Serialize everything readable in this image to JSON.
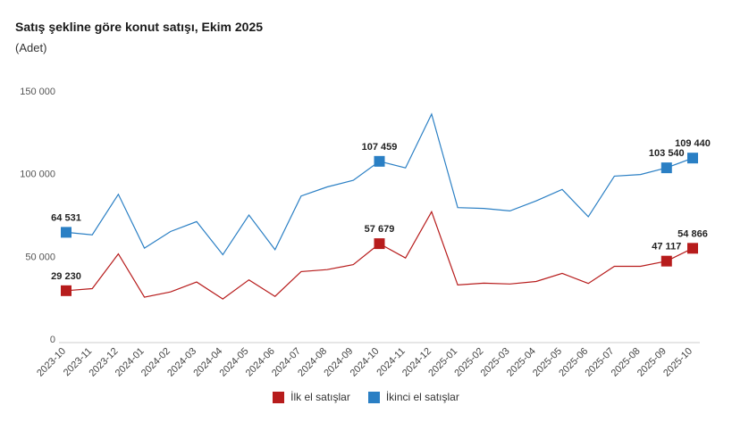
{
  "chart_data": {
    "type": "line",
    "title": "Satış şekline göre konut satışı, Ekim 2025",
    "subtitle": "(Adet)",
    "xlabel": "",
    "ylabel": "",
    "ylim": [
      0,
      150000
    ],
    "yticks": [
      0,
      50000,
      100000,
      150000
    ],
    "ytick_labels": [
      "0",
      "50 000",
      "100 000",
      "150 000"
    ],
    "categories": [
      "2023-10",
      "2023-11",
      "2023-12",
      "2024-01",
      "2024-02",
      "2024-03",
      "2024-04",
      "2024-05",
      "2024-06",
      "2024-07",
      "2024-08",
      "2024-09",
      "2024-10",
      "2024-11",
      "2024-12",
      "2025-01",
      "2025-02",
      "2025-03",
      "2025-04",
      "2025-05",
      "2025-06",
      "2025-07",
      "2025-08",
      "2025-09",
      "2025-10"
    ],
    "series": [
      {
        "name": "İlk el satışlar",
        "color": "#b71c1c",
        "values": [
          29230,
          30500,
          51500,
          25300,
          28500,
          34500,
          24200,
          35800,
          25800,
          40800,
          42000,
          45000,
          57679,
          49000,
          77000,
          32700,
          33800,
          33300,
          34800,
          39700,
          33600,
          44000,
          44000,
          47117,
          54866
        ],
        "markers": [
          0,
          12,
          23,
          24
        ],
        "marker_labels": [
          "29 230",
          "57 679",
          "47 117",
          "54 866"
        ]
      },
      {
        "name": "İkinci el satışlar",
        "color": "#2a7fc4",
        "values": [
          64531,
          63000,
          87500,
          55000,
          65000,
          71000,
          51000,
          75000,
          54000,
          86500,
          92000,
          96000,
          107459,
          103500,
          136000,
          79500,
          79000,
          77500,
          83500,
          90500,
          74000,
          98500,
          99500,
          103540,
          109440
        ],
        "markers": [
          0,
          12,
          23,
          24
        ],
        "marker_labels": [
          "64 531",
          "107 459",
          "103 540",
          "109 440"
        ]
      }
    ],
    "legend": [
      "İlk el satışlar",
      "İkinci el satışlar"
    ],
    "legend_position": "bottom"
  }
}
